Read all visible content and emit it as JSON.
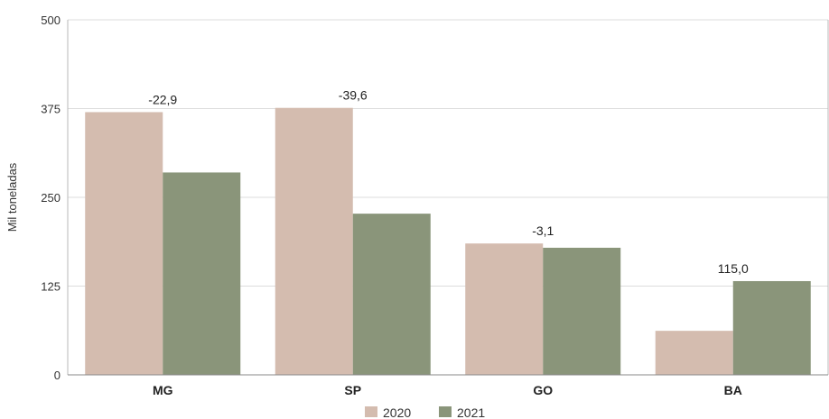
{
  "chart_data": {
    "type": "bar",
    "ylabel": "Mil toneladas",
    "xlabel": "",
    "title": "",
    "categories": [
      "MG",
      "SP",
      "GO",
      "BA"
    ],
    "series": [
      {
        "name": "2020",
        "values": [
          370,
          376,
          185,
          62
        ],
        "color": "#d4bcaf"
      },
      {
        "name": "2021",
        "values": [
          285,
          227,
          179,
          132
        ],
        "color": "#8a957a"
      }
    ],
    "annotations": [
      "-22,9",
      "-39,6",
      "-3,1",
      "115,0"
    ],
    "ylim": [
      0,
      500
    ],
    "yticks": [
      "0",
      "125",
      "250",
      "375",
      "500"
    ],
    "grid": true,
    "legend_position": "bottom"
  }
}
